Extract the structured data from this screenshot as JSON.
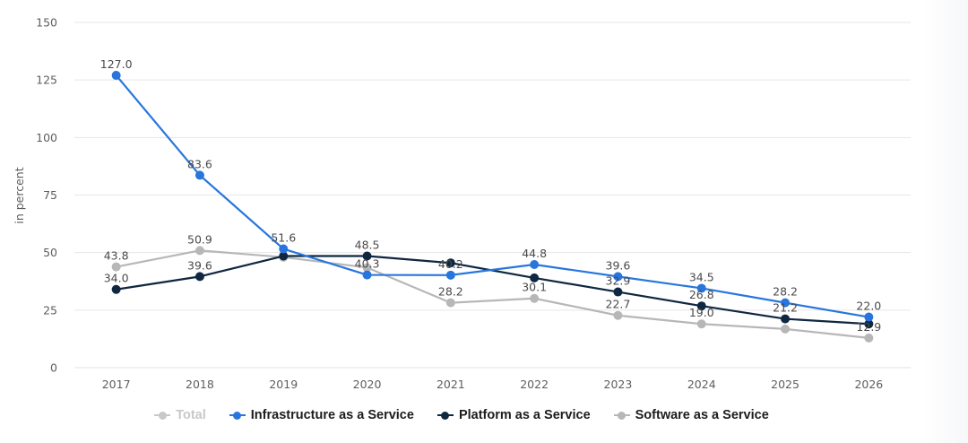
{
  "chart_data": {
    "type": "line",
    "title": "",
    "xlabel": "",
    "ylabel": "in percent",
    "ylim": [
      0,
      150
    ],
    "yticks": [
      0,
      25,
      50,
      75,
      100,
      125,
      150
    ],
    "grid": true,
    "legend_position": "bottom",
    "categories": [
      "2017",
      "2018",
      "2019",
      "2020",
      "2021",
      "2022",
      "2023",
      "2024",
      "2025",
      "2026"
    ],
    "series": [
      {
        "name": "Total",
        "visible": false,
        "color": "#c8c8c8",
        "values": []
      },
      {
        "name": "Infrastructure as a Service",
        "visible": true,
        "color": "#2876dd",
        "values": [
          127.0,
          83.6,
          51.6,
          40.3,
          40.2,
          44.8,
          39.6,
          34.5,
          28.2,
          22.0
        ],
        "labels": [
          "127.0",
          "83.6",
          "51.6",
          "40.3",
          "40.2",
          "44.8",
          "39.6",
          "34.5",
          "28.2",
          "22.0"
        ]
      },
      {
        "name": "Platform as a Service",
        "visible": true,
        "color": "#0f2741",
        "values": [
          34.0,
          39.6,
          48.5,
          48.5,
          45.5,
          39.0,
          32.9,
          26.8,
          21.2,
          19.0
        ],
        "labels": [
          "34.0",
          "39.6",
          "",
          "48.5",
          "",
          "",
          "32.9",
          "26.8",
          "21.2",
          ""
        ]
      },
      {
        "name": "Software as a Service",
        "visible": true,
        "color": "#b7b7b7",
        "values": [
          43.8,
          50.9,
          48.0,
          43.5,
          28.2,
          30.1,
          22.7,
          19.0,
          16.8,
          12.9
        ],
        "labels": [
          "43.8",
          "50.9",
          "",
          "",
          "28.2",
          "30.1",
          "22.7",
          "19.0",
          "",
          "12.9"
        ]
      }
    ]
  },
  "legend": {
    "items": [
      {
        "label": "Total",
        "color": "#c8c8c8",
        "active": false
      },
      {
        "label": "Infrastructure as a Service",
        "color": "#2876dd",
        "active": true
      },
      {
        "label": "Platform as a Service",
        "color": "#0f2741",
        "active": true
      },
      {
        "label": "Software as a Service",
        "color": "#b7b7b7",
        "active": true
      }
    ]
  }
}
